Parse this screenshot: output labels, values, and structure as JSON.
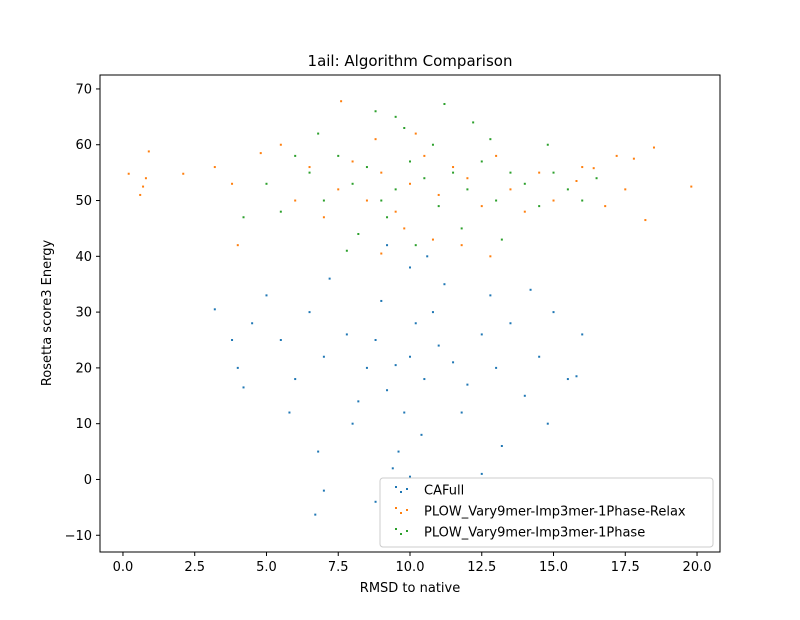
{
  "chart_data": {
    "type": "scatter",
    "title": "1ail: Algorithm Comparison",
    "xlabel": "RMSD to native",
    "ylabel": "Rosetta score3 Energy",
    "xlim": [
      -0.8,
      20.8
    ],
    "ylim": [
      -13,
      72.5
    ],
    "xticks": [
      "0.0",
      "2.5",
      "5.0",
      "7.5",
      "10.0",
      "12.5",
      "15.0",
      "17.5",
      "20.0"
    ],
    "xtick_values": [
      0,
      2.5,
      5,
      7.5,
      10,
      12.5,
      15,
      17.5,
      20
    ],
    "yticks": [
      "−10",
      "0",
      "10",
      "20",
      "30",
      "40",
      "50",
      "60",
      "70"
    ],
    "ytick_values": [
      -10,
      0,
      10,
      20,
      30,
      40,
      50,
      60,
      70
    ],
    "grid": false,
    "legend_position": "lower-right",
    "series": [
      {
        "name": "CAFull",
        "color": "#1f77b4",
        "points": [
          [
            10.0,
            22.0
          ],
          [
            9.5,
            20.5
          ],
          [
            8.8,
            25.0
          ],
          [
            10.5,
            18.0
          ],
          [
            11.0,
            24.0
          ],
          [
            9.2,
            16.0
          ],
          [
            10.2,
            28.0
          ],
          [
            8.5,
            20.0
          ],
          [
            11.5,
            21.0
          ],
          [
            9.8,
            12.0
          ],
          [
            10.8,
            30.0
          ],
          [
            7.8,
            26.0
          ],
          [
            12.0,
            17.0
          ],
          [
            9.0,
            32.0
          ],
          [
            10.4,
            8.0
          ],
          [
            8.2,
            14.0
          ],
          [
            11.2,
            35.0
          ],
          [
            7.0,
            22.0
          ],
          [
            12.5,
            26.0
          ],
          [
            9.6,
            5.0
          ],
          [
            6.5,
            30.0
          ],
          [
            13.0,
            20.0
          ],
          [
            10.0,
            38.0
          ],
          [
            8.0,
            10.0
          ],
          [
            11.8,
            12.0
          ],
          [
            6.0,
            18.0
          ],
          [
            13.5,
            28.0
          ],
          [
            9.4,
            2.0
          ],
          [
            5.5,
            25.0
          ],
          [
            14.0,
            15.0
          ],
          [
            10.6,
            40.0
          ],
          [
            7.2,
            36.0
          ],
          [
            12.8,
            33.0
          ],
          [
            5.0,
            33.0
          ],
          [
            14.5,
            22.0
          ],
          [
            11.0,
            -2.0
          ],
          [
            4.5,
            28.0
          ],
          [
            15.0,
            30.0
          ],
          [
            8.8,
            -4.0
          ],
          [
            4.0,
            20.0
          ],
          [
            15.5,
            18.0
          ],
          [
            6.8,
            5.0
          ],
          [
            13.2,
            6.0
          ],
          [
            5.8,
            12.0
          ],
          [
            14.8,
            10.0
          ],
          [
            9.2,
            42.0
          ],
          [
            3.8,
            25.0
          ],
          [
            16.0,
            26.0
          ],
          [
            3.2,
            30.5
          ],
          [
            15.8,
            18.5
          ],
          [
            6.7,
            -6.3
          ],
          [
            7.0,
            -2.0
          ],
          [
            12.5,
            1.0
          ],
          [
            10.0,
            0.5
          ],
          [
            4.2,
            16.5
          ],
          [
            14.2,
            34.0
          ]
        ]
      },
      {
        "name": "PLOW_Vary9mer-Imp3mer-1Phase-Relax",
        "color": "#ff7f0e",
        "points": [
          [
            10.0,
            53.0
          ],
          [
            9.0,
            55.0
          ],
          [
            11.0,
            51.0
          ],
          [
            8.5,
            50.0
          ],
          [
            11.5,
            56.0
          ],
          [
            10.5,
            58.0
          ],
          [
            9.5,
            48.0
          ],
          [
            12.0,
            54.0
          ],
          [
            8.0,
            57.0
          ],
          [
            7.5,
            52.0
          ],
          [
            12.5,
            49.0
          ],
          [
            10.2,
            62.0
          ],
          [
            9.8,
            45.0
          ],
          [
            13.0,
            58.0
          ],
          [
            7.0,
            47.0
          ],
          [
            13.5,
            52.0
          ],
          [
            6.5,
            56.0
          ],
          [
            14.0,
            48.0
          ],
          [
            10.8,
            43.0
          ],
          [
            8.8,
            61.0
          ],
          [
            6.0,
            50.0
          ],
          [
            14.5,
            55.0
          ],
          [
            11.8,
            42.0
          ],
          [
            7.6,
            67.8
          ],
          [
            5.5,
            60.0
          ],
          [
            15.0,
            50.0
          ],
          [
            4.0,
            42.0
          ],
          [
            16.0,
            56.0
          ],
          [
            16.8,
            49.0
          ],
          [
            17.5,
            52.0
          ],
          [
            18.2,
            46.5
          ],
          [
            18.5,
            59.5
          ],
          [
            19.8,
            52.5
          ],
          [
            0.2,
            54.8
          ],
          [
            0.6,
            51.0
          ],
          [
            0.7,
            52.5
          ],
          [
            0.8,
            54.0
          ],
          [
            0.9,
            58.8
          ],
          [
            2.1,
            54.8
          ],
          [
            3.2,
            56.0
          ],
          [
            17.2,
            58.0
          ],
          [
            16.4,
            55.8
          ],
          [
            12.8,
            40.0
          ],
          [
            9.0,
            40.5
          ],
          [
            4.8,
            58.5
          ],
          [
            15.8,
            53.5
          ],
          [
            17.8,
            57.5
          ],
          [
            3.8,
            53.0
          ]
        ]
      },
      {
        "name": "PLOW_Vary9mer-Imp3mer-1Phase",
        "color": "#2ca02c",
        "points": [
          [
            10.5,
            54.0
          ],
          [
            9.5,
            52.0
          ],
          [
            11.5,
            55.0
          ],
          [
            10.0,
            57.0
          ],
          [
            9.0,
            50.0
          ],
          [
            12.0,
            52.0
          ],
          [
            8.5,
            56.0
          ],
          [
            11.0,
            49.0
          ],
          [
            10.8,
            60.0
          ],
          [
            9.2,
            47.0
          ],
          [
            12.5,
            57.0
          ],
          [
            8.0,
            53.0
          ],
          [
            13.0,
            50.0
          ],
          [
            7.5,
            58.0
          ],
          [
            11.8,
            45.0
          ],
          [
            9.8,
            63.0
          ],
          [
            13.5,
            55.0
          ],
          [
            7.0,
            50.0
          ],
          [
            14.0,
            53.0
          ],
          [
            8.2,
            44.0
          ],
          [
            12.8,
            61.0
          ],
          [
            6.5,
            55.0
          ],
          [
            14.5,
            49.0
          ],
          [
            10.2,
            42.0
          ],
          [
            6.0,
            58.0
          ],
          [
            15.0,
            55.0
          ],
          [
            11.2,
            67.3
          ],
          [
            5.5,
            48.0
          ],
          [
            15.5,
            52.0
          ],
          [
            9.5,
            65.0
          ],
          [
            13.2,
            43.0
          ],
          [
            5.0,
            53.0
          ],
          [
            16.0,
            50.0
          ],
          [
            7.8,
            41.0
          ],
          [
            12.2,
            64.0
          ],
          [
            4.2,
            47.0
          ],
          [
            14.8,
            60.0
          ],
          [
            8.8,
            66.0
          ],
          [
            16.5,
            54.0
          ],
          [
            6.8,
            62.0
          ]
        ]
      }
    ]
  }
}
